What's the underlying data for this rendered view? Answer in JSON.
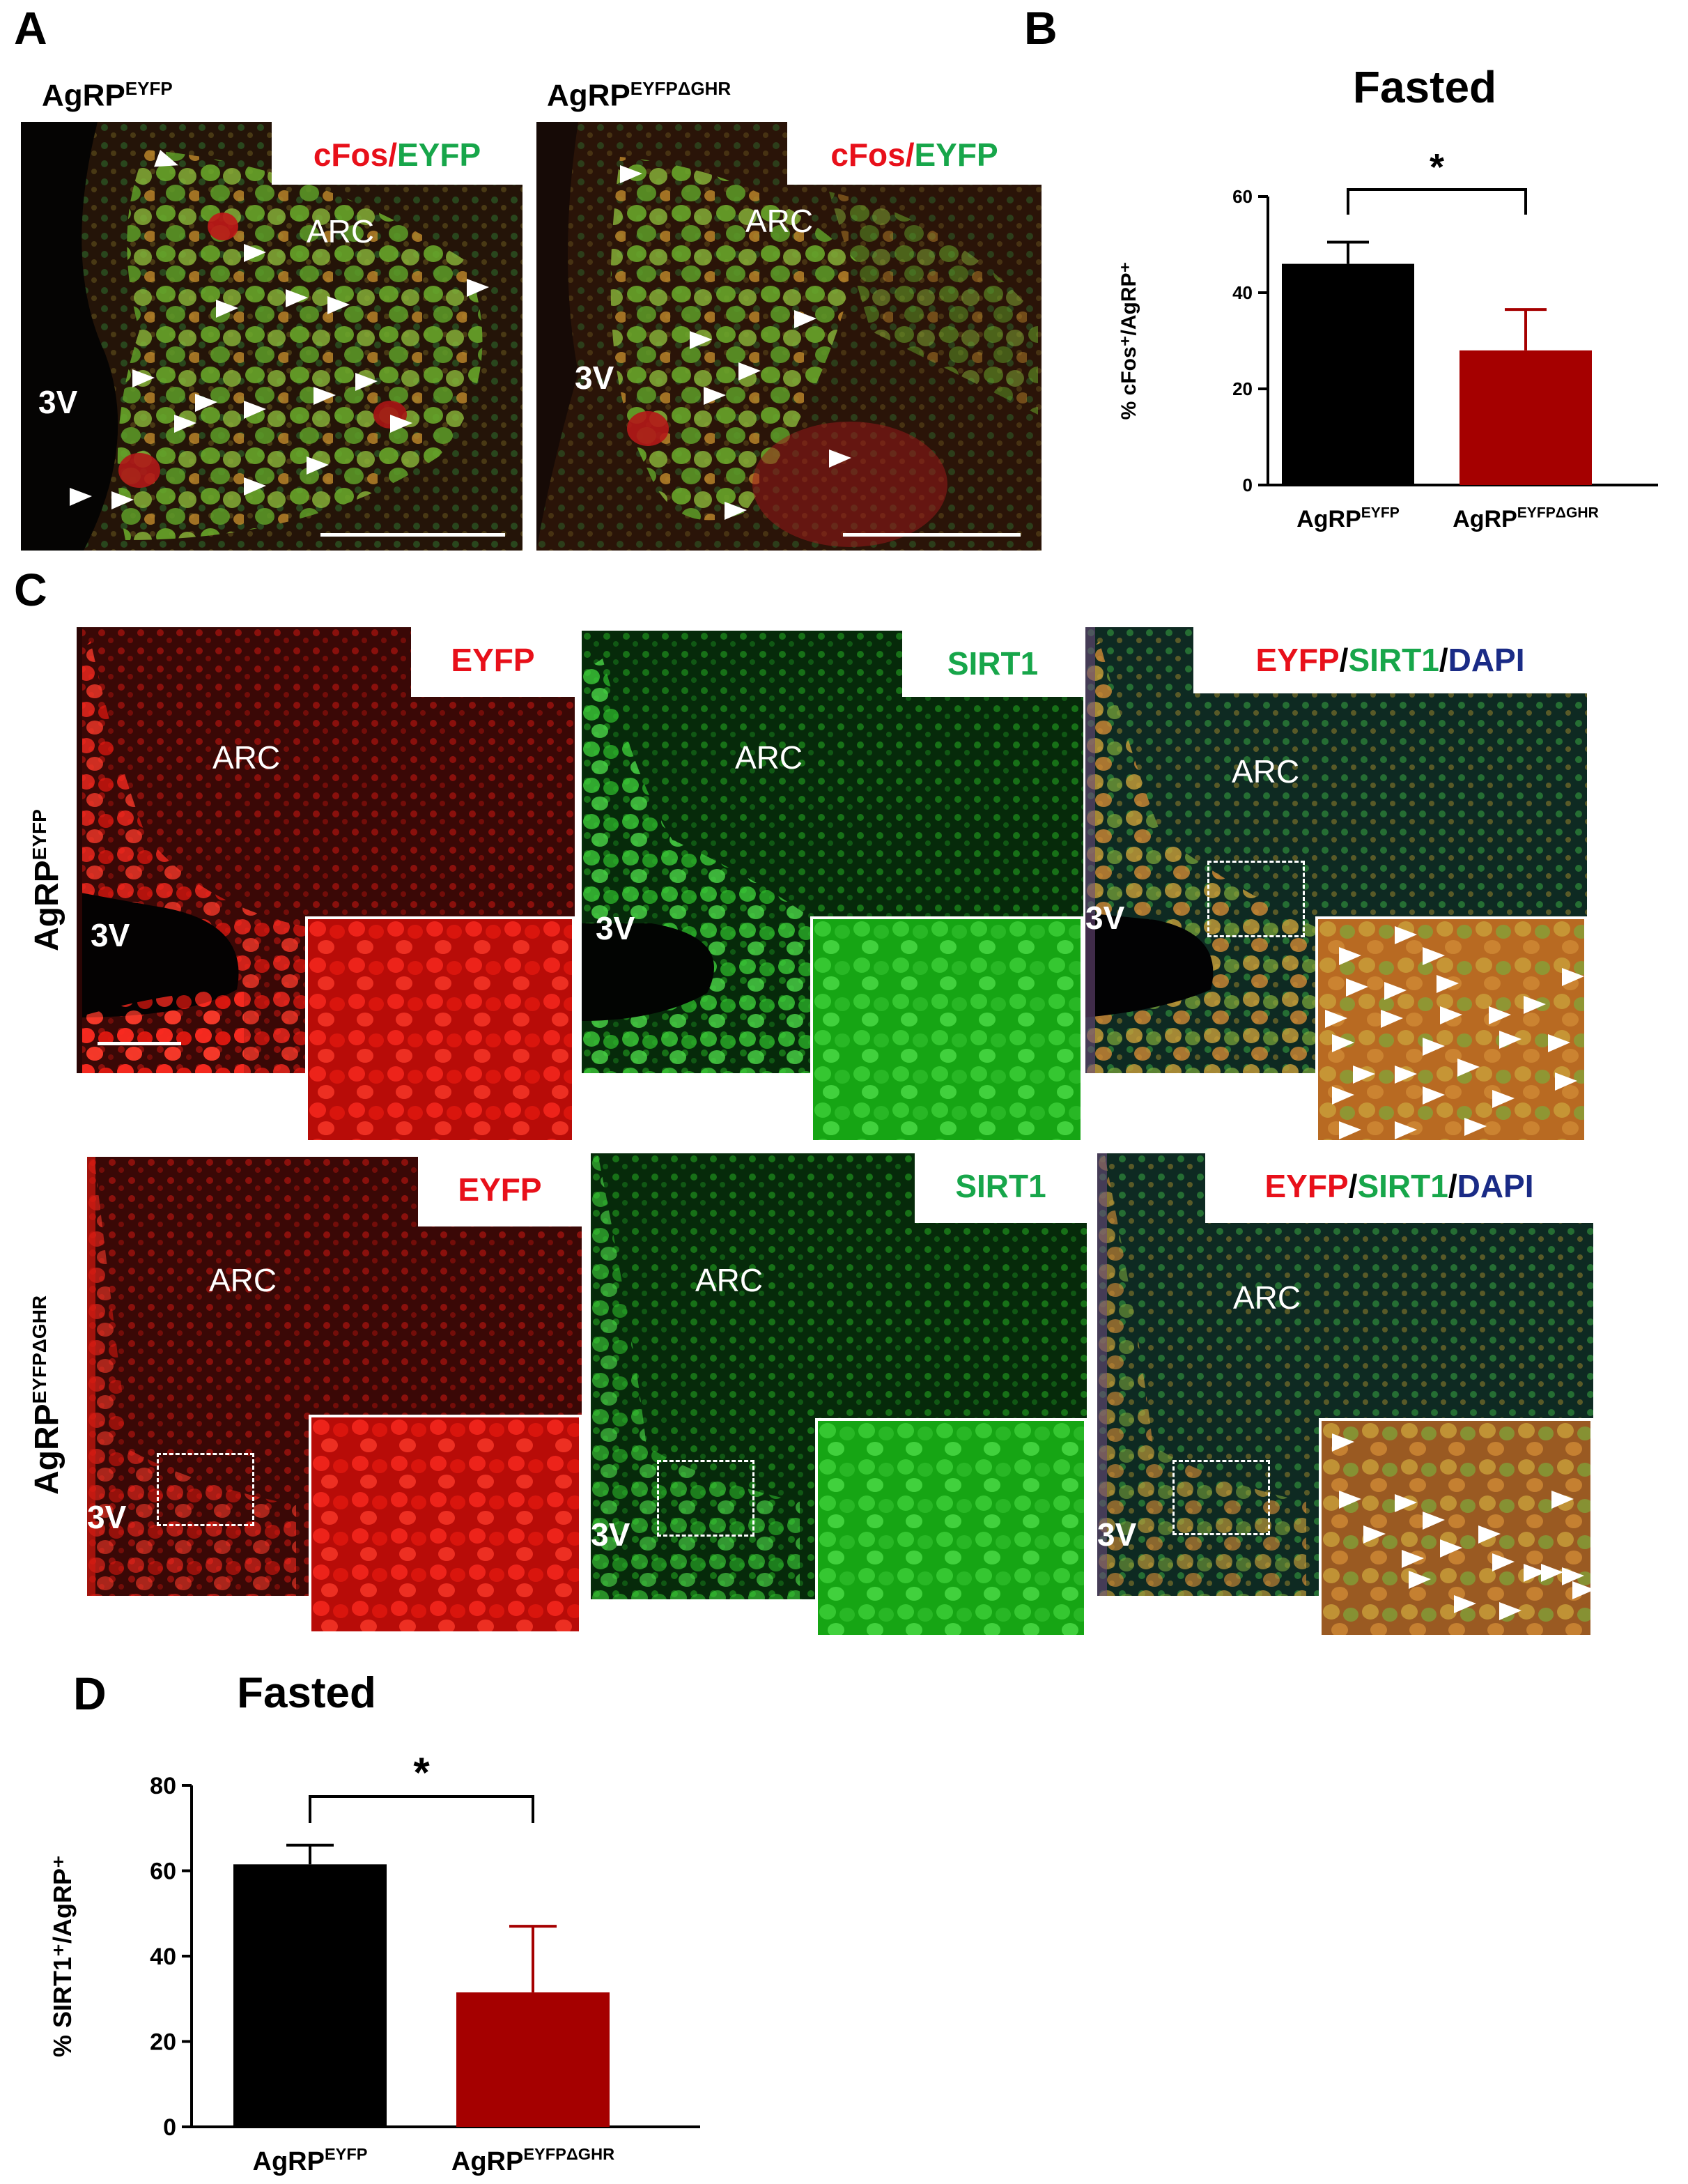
{
  "panels": {
    "A": "A",
    "B": "B",
    "C": "C",
    "D": "D"
  },
  "panelA": {
    "left_title": "AgRP",
    "left_title_sup": "EYFP",
    "right_title": "AgRP",
    "right_title_sup": "EYFPΔGHR",
    "stain_red": "cFos",
    "slash": "/",
    "stain_green": "EYFP",
    "arc": "ARC",
    "third_ventricle": "3V"
  },
  "panelC": {
    "eyfp": "EYFP",
    "sirt1": "SIRT1",
    "merge_red": "EYFP",
    "merge_slash1": "/",
    "merge_green": "SIRT1",
    "merge_slash2": "/",
    "merge_blue": "DAPI",
    "arc": "ARC",
    "third_ventricle": "3V",
    "row1_label": "AgRP",
    "row1_sup": "EYFP",
    "row2_label": "AgRP",
    "row2_sup": "EYFPΔGHR"
  },
  "colors": {
    "control": "#000000",
    "knockout": "#a50000",
    "red_stain": "#e8101a",
    "green_stain": "#17a64a",
    "blue_stain": "#1a2b86"
  },
  "chart_data": [
    {
      "type": "bar",
      "title": "Fasted",
      "ylabel": "% cFos⁺/AgRP⁺",
      "categories": [
        "AgRP",
        "AgRP"
      ],
      "category_sups": [
        "EYFP",
        "EYFPΔGHR"
      ],
      "values": [
        46,
        28
      ],
      "errors": [
        4.5,
        8.5
      ],
      "ylim": [
        0,
        60
      ],
      "yticks": [
        "0",
        "20",
        "40",
        "60"
      ],
      "significance": "*"
    },
    {
      "type": "bar",
      "title": "Fasted",
      "ylabel": "% SIRT1⁺/AgRP⁺",
      "categories": [
        "AgRP",
        "AgRP"
      ],
      "category_sups": [
        "EYFP",
        "EYFPΔGHR"
      ],
      "values": [
        61.5,
        31.5
      ],
      "errors": [
        4.5,
        15.5
      ],
      "ylim": [
        0,
        80
      ],
      "yticks": [
        "0",
        "20",
        "40",
        "60",
        "80"
      ],
      "significance": "*"
    }
  ]
}
